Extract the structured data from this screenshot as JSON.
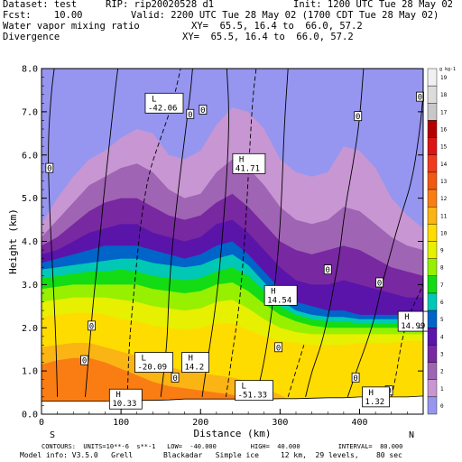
{
  "header": {
    "dataset_label": "Dataset: test",
    "rip_label": "RIP: rip20020528 d1",
    "init_label": "Init: 1200 UTC Tue 28 May 02",
    "fcst_label": "Fcst:    10.00",
    "valid_label": "Valid: 2200 UTC Tue 28 May 02 (1700 CDT Tue 28 May 02)",
    "field1": "Water vapor mixing ratio",
    "field1_xy": "XY=  65.5, 16.4 to  66.0, 57.2",
    "field2": "Divergence",
    "field2_xy": "XY=  65.5, 16.4 to  66.0, 57.2"
  },
  "footer": {
    "contours": "CONTOURS:  UNITS=10**-6  s**-1   LOW=  -40.000         HIGH=  40.000          INTERVAL=  80.000",
    "model_info": "Model info: V3.5.0   Grell       Blackadar   Simple ice     12 km,  29 levels,    80 sec"
  },
  "chart_data": {
    "type": "heatmap",
    "xlabel": "Distance (km)",
    "ylabel": "Height (km)",
    "xlim": [
      0,
      480
    ],
    "ylim": [
      0,
      8
    ],
    "xticks": [
      "0",
      "100",
      "200",
      "300",
      "400"
    ],
    "yticks": [
      "0.0",
      "1.0",
      "2.0",
      "3.0",
      "4.0",
      "5.0",
      "6.0",
      "7.0",
      "8.0"
    ],
    "x_end_labels": {
      "left": "S",
      "right": "N"
    },
    "colorbar": {
      "unit_label": "g kg-1",
      "levels": [
        "19",
        "18",
        "17",
        "16",
        "15",
        "14",
        "13",
        "12",
        "11",
        "10",
        "9",
        "8",
        "7",
        "6",
        "5",
        "4",
        "3",
        "2",
        "1",
        "0"
      ],
      "colors": [
        "#f0f0f0",
        "#dcdcdc",
        "#c8c8c8",
        "#b40000",
        "#dc1414",
        "#f03c1e",
        "#f05a14",
        "#fa7d14",
        "#fab414",
        "#ffdc00",
        "#e6f000",
        "#96f000",
        "#14dc14",
        "#00c8b4",
        "#0064c8",
        "#5a14aa",
        "#7828a0",
        "#a064b4",
        "#c896d2",
        "#9696f0"
      ]
    },
    "moisture_bands": [
      {
        "level": "0",
        "color": "#9696f0",
        "top": [
          8,
          8,
          8,
          8,
          8,
          8,
          8,
          8,
          8,
          8,
          8,
          8,
          8,
          8,
          8,
          8,
          8,
          8,
          8,
          8,
          8,
          8,
          8,
          8,
          8
        ]
      },
      {
        "level": "1",
        "color": "#c896d2",
        "top": [
          4.4,
          5.0,
          5.5,
          5.9,
          6.1,
          6.4,
          6.6,
          6.5,
          6.0,
          5.9,
          6.1,
          6.7,
          7.1,
          7.0,
          6.6,
          5.9,
          5.6,
          5.5,
          5.6,
          6.2,
          6.1,
          5.7,
          5.0,
          4.6,
          4.3
        ]
      },
      {
        "level": "2",
        "color": "#a064b4",
        "top": [
          4.1,
          4.5,
          4.9,
          5.3,
          5.5,
          5.7,
          5.8,
          5.6,
          5.2,
          5.0,
          5.1,
          5.6,
          5.9,
          5.7,
          5.3,
          4.8,
          4.5,
          4.4,
          4.5,
          4.8,
          4.7,
          4.4,
          4.1,
          3.9,
          3.8
        ]
      },
      {
        "level": "3",
        "color": "#7828a0",
        "top": [
          3.9,
          4.1,
          4.4,
          4.7,
          4.9,
          5.0,
          5.0,
          4.8,
          4.6,
          4.5,
          4.6,
          4.9,
          5.1,
          4.8,
          4.4,
          4.0,
          3.8,
          3.7,
          3.8,
          3.9,
          3.8,
          3.6,
          3.4,
          3.3,
          3.2
        ]
      },
      {
        "level": "4",
        "color": "#5a14aa",
        "top": [
          3.7,
          3.8,
          4.0,
          4.2,
          4.3,
          4.4,
          4.4,
          4.2,
          4.1,
          4.0,
          4.1,
          4.4,
          4.5,
          4.2,
          3.8,
          3.4,
          3.1,
          3.0,
          3.0,
          3.1,
          3.0,
          2.9,
          2.8,
          2.7,
          2.7
        ]
      },
      {
        "level": "5",
        "color": "#0064c8",
        "top": [
          3.5,
          3.6,
          3.7,
          3.8,
          3.9,
          3.9,
          3.9,
          3.8,
          3.7,
          3.6,
          3.7,
          3.9,
          4.0,
          3.7,
          3.3,
          2.9,
          2.6,
          2.5,
          2.4,
          2.4,
          2.3,
          2.3,
          2.3,
          2.3,
          2.3
        ]
      },
      {
        "level": "6",
        "color": "#00c8b4",
        "top": [
          3.35,
          3.4,
          3.45,
          3.5,
          3.55,
          3.6,
          3.6,
          3.5,
          3.45,
          3.4,
          3.45,
          3.6,
          3.7,
          3.45,
          3.05,
          2.65,
          2.4,
          2.3,
          2.25,
          2.25,
          2.2,
          2.2,
          2.2,
          2.2,
          2.2
        ]
      },
      {
        "level": "7",
        "color": "#14dc14",
        "top": [
          3.15,
          3.2,
          3.25,
          3.3,
          3.3,
          3.35,
          3.3,
          3.2,
          3.15,
          3.1,
          3.15,
          3.3,
          3.4,
          3.2,
          2.85,
          2.5,
          2.3,
          2.2,
          2.15,
          2.15,
          2.1,
          2.1,
          2.1,
          2.1,
          2.1
        ]
      },
      {
        "level": "8",
        "color": "#96f000",
        "top": [
          2.9,
          2.95,
          3.0,
          3.0,
          3.0,
          3.0,
          3.0,
          2.9,
          2.85,
          2.8,
          2.85,
          3.0,
          3.05,
          2.85,
          2.55,
          2.3,
          2.15,
          2.05,
          2.0,
          2.0,
          2.0,
          2.0,
          2.0,
          2.0,
          2.0
        ]
      },
      {
        "level": "9",
        "color": "#e6f000",
        "top": [
          2.6,
          2.65,
          2.7,
          2.7,
          2.7,
          2.65,
          2.6,
          2.5,
          2.45,
          2.4,
          2.45,
          2.6,
          2.65,
          2.45,
          2.2,
          2.0,
          1.9,
          1.85,
          1.85,
          1.85,
          1.85,
          1.85,
          1.85,
          1.85,
          1.85
        ]
      },
      {
        "level": "10",
        "color": "#ffdc00",
        "top": [
          2.25,
          2.3,
          2.35,
          2.35,
          2.3,
          2.2,
          2.15,
          2.05,
          2.0,
          1.95,
          2.0,
          2.1,
          2.1,
          1.95,
          1.8,
          1.7,
          1.65,
          1.6,
          1.6,
          1.6,
          1.65,
          1.65,
          1.65,
          1.7,
          1.7
        ]
      },
      {
        "level": "11",
        "color": "#fab414",
        "top": [
          1.55,
          1.6,
          1.65,
          1.65,
          1.55,
          1.45,
          1.35,
          1.2,
          1.1,
          1.0,
          0.95,
          0.9,
          0.85,
          0.75,
          0.6,
          0.45,
          0.25,
          0.2,
          0.2,
          0.2,
          0.2,
          0.2,
          0.2,
          0.2,
          0.2
        ]
      },
      {
        "level": "12",
        "color": "#fa7d14",
        "top": [
          1.15,
          1.25,
          1.3,
          1.3,
          1.2,
          1.05,
          0.9,
          0.75,
          0.65,
          0.6,
          0.55,
          0.5,
          0.45,
          0.35,
          0.25,
          0.2,
          0.2,
          0.2,
          0.2,
          0.2,
          0.2,
          0.2,
          0.2,
          0.2,
          0.2
        ]
      }
    ],
    "terrain_top": [
      0.3,
      0.3,
      0.3,
      0.3,
      0.3,
      0.32,
      0.32,
      0.32,
      0.33,
      0.35,
      0.35,
      0.35,
      0.35,
      0.35,
      0.35,
      0.36,
      0.36,
      0.37,
      0.38,
      0.38,
      0.4,
      0.4,
      0.4,
      0.4,
      0.42
    ],
    "annotations": [
      {
        "kind": "L",
        "value": "-42.06",
        "x": 135,
        "y": 7.2
      },
      {
        "kind": "H",
        "value": "41.71",
        "x": 245,
        "y": 5.8
      },
      {
        "kind": "H",
        "value": "14.54",
        "x": 285,
        "y": 2.75
      },
      {
        "kind": "H",
        "value": "14.99",
        "x": 453,
        "y": 2.15
      },
      {
        "kind": "L",
        "value": "-20.09",
        "x": 122,
        "y": 1.2
      },
      {
        "kind": "H",
        "value": "14.2",
        "x": 181,
        "y": 1.2
      },
      {
        "kind": "L",
        "value": "-51.33",
        "x": 248,
        "y": 0.55
      },
      {
        "kind": "H",
        "value": "10.33",
        "x": 90,
        "y": 0.35
      },
      {
        "kind": "H",
        "value": "1.32",
        "x": 408,
        "y": 0.4
      }
    ],
    "zero_labels": [
      {
        "value": "0",
        "x": 10,
        "y": 5.7
      },
      {
        "value": "0",
        "x": 187,
        "y": 6.95
      },
      {
        "value": "0",
        "x": 203,
        "y": 7.05
      },
      {
        "value": "0",
        "x": 398,
        "y": 6.9
      },
      {
        "value": "0",
        "x": 476,
        "y": 7.35
      },
      {
        "value": "0",
        "x": 360,
        "y": 3.35
      },
      {
        "value": "0",
        "x": 425,
        "y": 3.05
      },
      {
        "value": "0",
        "x": 63,
        "y": 2.05
      },
      {
        "value": "0",
        "x": 54,
        "y": 1.25
      },
      {
        "value": "0",
        "x": 168,
        "y": 0.85
      },
      {
        "value": "0",
        "x": 298,
        "y": 1.55
      },
      {
        "value": "0",
        "x": 395,
        "y": 0.85
      },
      {
        "value": "0",
        "x": 437,
        "y": 0.55
      }
    ],
    "div_contours": [
      {
        "style": "solid",
        "points": [
          [
            55,
            0.4
          ],
          [
            60,
            1.5
          ],
          [
            65,
            2.6
          ],
          [
            72,
            3.8
          ],
          [
            78,
            5.0
          ],
          [
            85,
            6.2
          ],
          [
            92,
            7.4
          ],
          [
            96,
            8
          ]
        ]
      },
      {
        "style": "solid",
        "points": [
          [
            20,
            0.4
          ],
          [
            18,
            1.8
          ],
          [
            14,
            3.3
          ],
          [
            10,
            4.8
          ],
          [
            8,
            6.2
          ],
          [
            12,
            7.4
          ],
          [
            16,
            8
          ]
        ]
      },
      {
        "style": "dashed",
        "points": [
          [
            108,
            0.4
          ],
          [
            110,
            1.6
          ],
          [
            118,
            3.2
          ],
          [
            125,
            4.5
          ],
          [
            135,
            5.6
          ],
          [
            150,
            6.4
          ],
          [
            165,
            7.2
          ],
          [
            175,
            8
          ]
        ]
      },
      {
        "style": "solid",
        "points": [
          [
            150,
            0.4
          ],
          [
            158,
            1.6
          ],
          [
            160,
            2.8
          ],
          [
            165,
            4.0
          ],
          [
            172,
            5.2
          ],
          [
            180,
            6.4
          ],
          [
            187,
            7.4
          ],
          [
            190,
            8
          ]
        ]
      },
      {
        "style": "solid",
        "points": [
          [
            202,
            0.4
          ],
          [
            210,
            1.4
          ],
          [
            220,
            2.6
          ],
          [
            228,
            4.2
          ],
          [
            234,
            5.8
          ],
          [
            236,
            7.0
          ],
          [
            233,
            8
          ]
        ]
      },
      {
        "style": "dashed",
        "points": [
          [
            232,
            0.4
          ],
          [
            240,
            1.4
          ],
          [
            248,
            2.4
          ],
          [
            254,
            3.6
          ],
          [
            258,
            4.8
          ],
          [
            262,
            6.2
          ],
          [
            266,
            7.4
          ],
          [
            270,
            8
          ]
        ]
      },
      {
        "style": "solid",
        "points": [
          [
            270,
            0.4
          ],
          [
            280,
            1.2
          ],
          [
            290,
            2.4
          ],
          [
            298,
            3.8
          ],
          [
            302,
            5.0
          ],
          [
            305,
            6.6
          ],
          [
            310,
            8
          ]
        ]
      },
      {
        "style": "dashed",
        "points": [
          [
            310,
            0.4
          ],
          [
            320,
            1.0
          ],
          [
            330,
            1.6
          ]
        ]
      },
      {
        "style": "solid",
        "points": [
          [
            332,
            0.4
          ],
          [
            340,
            1.0
          ],
          [
            352,
            1.6
          ],
          [
            362,
            2.4
          ],
          [
            368,
            3.0
          ],
          [
            374,
            3.6
          ],
          [
            382,
            4.8
          ],
          [
            392,
            5.8
          ],
          [
            400,
            6.8
          ],
          [
            405,
            8
          ]
        ]
      },
      {
        "style": "solid",
        "points": [
          [
            385,
            0.4
          ],
          [
            398,
            1.1
          ],
          [
            410,
            1.7
          ],
          [
            420,
            2.3
          ],
          [
            428,
            3.0
          ],
          [
            440,
            3.8
          ],
          [
            452,
            4.6
          ],
          [
            466,
            5.4
          ],
          [
            476,
            6.6
          ],
          [
            480,
            7.4
          ]
        ]
      },
      {
        "style": "dashed",
        "points": [
          [
            440,
            0.4
          ],
          [
            446,
            0.9
          ],
          [
            452,
            1.6
          ],
          [
            460,
            2.2
          ],
          [
            470,
            2.6
          ],
          [
            480,
            3.0
          ]
        ]
      }
    ]
  }
}
